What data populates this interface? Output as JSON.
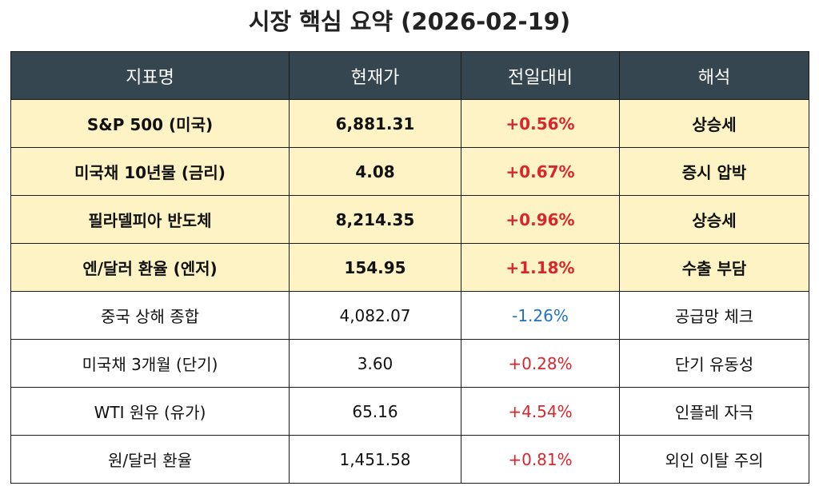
{
  "title": "시장 핵심 요약 (2026-02-19)",
  "colors": {
    "header_bg": "#354650",
    "highlight_bg": "#fdf3c4",
    "up": "#d9262c",
    "down": "#1f72c7"
  },
  "table": {
    "headers": [
      "지표명",
      "현재가",
      "전일대비",
      "해석"
    ],
    "rows": [
      {
        "name": "S&P 500 (미국)",
        "price": "6,881.31",
        "change": "+0.56%",
        "direction": "up",
        "interpretation": "상승세",
        "highlight": true
      },
      {
        "name": "미국채 10년물 (금리)",
        "price": "4.08",
        "change": "+0.67%",
        "direction": "up",
        "interpretation": "증시 압박",
        "highlight": true
      },
      {
        "name": "필라델피아 반도체",
        "price": "8,214.35",
        "change": "+0.96%",
        "direction": "up",
        "interpretation": "상승세",
        "highlight": true
      },
      {
        "name": "엔/달러 환율 (엔저)",
        "price": "154.95",
        "change": "+1.18%",
        "direction": "up",
        "interpretation": "수출 부담",
        "highlight": true
      },
      {
        "name": "중국 상해 종합",
        "price": "4,082.07",
        "change": "-1.26%",
        "direction": "down",
        "interpretation": "공급망 체크",
        "highlight": false
      },
      {
        "name": "미국채 3개월 (단기)",
        "price": "3.60",
        "change": "+0.28%",
        "direction": "up",
        "interpretation": "단기 유동성",
        "highlight": false
      },
      {
        "name": "WTI 원유 (유가)",
        "price": "65.16",
        "change": "+4.54%",
        "direction": "up",
        "interpretation": "인플레 자극",
        "highlight": false
      },
      {
        "name": "원/달러 환율",
        "price": "1,451.58",
        "change": "+0.81%",
        "direction": "up",
        "interpretation": "외인 이탈 주의",
        "highlight": false
      }
    ]
  }
}
